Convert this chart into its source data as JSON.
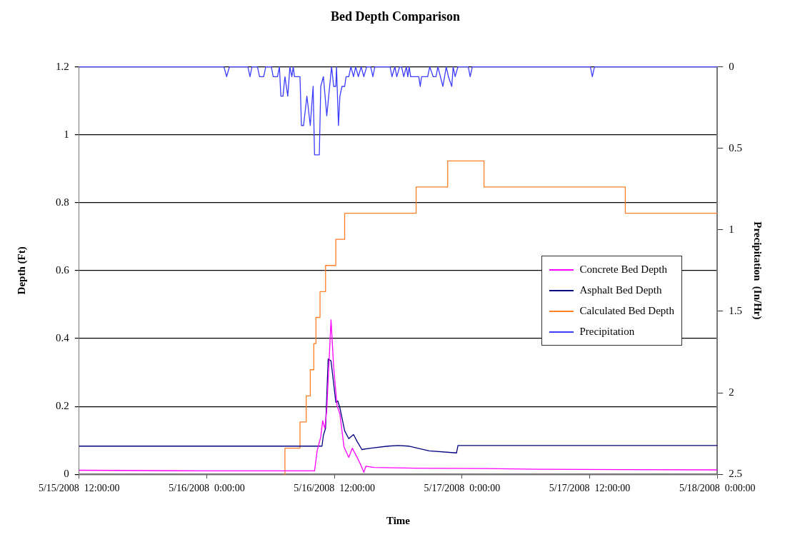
{
  "chart_data": {
    "type": "line",
    "title": "Bed Depth Comparison",
    "xlabel": "Time",
    "ylabel": "Depth (Ft)",
    "y2label": "Precipitation  (In/Hr)",
    "xlim": [
      "2008-05-15T12:00",
      "2008-05-18T00:00"
    ],
    "xticks": [
      {
        "value": "2008-05-15T12:00",
        "label": "5/15/2008  12:00:00"
      },
      {
        "value": "2008-05-16T00:00",
        "label": "5/16/2008  0:00:00"
      },
      {
        "value": "2008-05-16T12:00",
        "label": "5/16/2008  12:00:00"
      },
      {
        "value": "2008-05-17T00:00",
        "label": "5/17/2008  0:00:00"
      },
      {
        "value": "2008-05-17T12:00",
        "label": "5/17/2008  12:00:00"
      },
      {
        "value": "2008-05-18T00:00",
        "label": "5/18/2008  0:00:00"
      }
    ],
    "ylim": [
      0,
      1.2
    ],
    "yticks": [
      0,
      0.2,
      0.4,
      0.6,
      0.8,
      1,
      1.2
    ],
    "y2lim": [
      2.5,
      0
    ],
    "y2ticks": [
      0,
      0.5,
      1,
      1.5,
      2,
      2.5
    ],
    "grid": "y",
    "legend": "right",
    "marker": "none",
    "series": [
      {
        "name": "Concrete Bed Depth",
        "color": "#ff00ff",
        "x": [
          "2008-05-15T12:00",
          "2008-05-16T00:00",
          "2008-05-16T09:17",
          "2008-05-16T10:08",
          "2008-05-16T10:23",
          "2008-05-16T10:43",
          "2008-05-16T10:54",
          "2008-05-16T11:06",
          "2008-05-16T11:17",
          "2008-05-16T11:41",
          "2008-05-16T11:56",
          "2008-05-16T12:15",
          "2008-05-16T12:31",
          "2008-05-16T12:54",
          "2008-05-16T13:21",
          "2008-05-16T13:41",
          "2008-05-16T14:08",
          "2008-05-16T14:27",
          "2008-05-16T14:46",
          "2008-05-16T14:58",
          "2008-05-16T15:44",
          "2008-05-16T19:37",
          "2008-05-17T02:04",
          "2008-05-17T07:14",
          "2008-05-17T14:58",
          "2008-05-18T00:00"
        ],
        "values": [
          0.012,
          0.01,
          0.01,
          0.01,
          0.07,
          0.11,
          0.158,
          0.135,
          0.19,
          0.455,
          0.314,
          0.202,
          0.178,
          0.081,
          0.05,
          0.077,
          0.05,
          0.03,
          0.006,
          0.024,
          0.02,
          0.018,
          0.017,
          0.015,
          0.014,
          0.013
        ]
      },
      {
        "name": "Asphalt Bed Depth",
        "color": "#000080",
        "x": [
          "2008-05-15T12:00",
          "2008-05-16T10:50",
          "2008-05-16T10:58",
          "2008-05-16T11:10",
          "2008-05-16T11:25",
          "2008-05-16T11:41",
          "2008-05-16T12:08",
          "2008-05-16T12:19",
          "2008-05-16T12:31",
          "2008-05-16T12:58",
          "2008-05-16T13:21",
          "2008-05-16T13:48",
          "2008-05-16T14:08",
          "2008-05-16T14:35",
          "2008-05-16T15:25",
          "2008-05-16T17:02",
          "2008-05-16T18:00",
          "2008-05-16T18:58",
          "2008-05-16T20:54",
          "2008-05-16T23:29",
          "2008-05-16T23:37",
          "2008-05-18T00:00"
        ],
        "values": [
          0.083,
          0.083,
          0.115,
          0.135,
          0.34,
          0.334,
          0.212,
          0.216,
          0.196,
          0.128,
          0.105,
          0.117,
          0.097,
          0.073,
          0.077,
          0.083,
          0.085,
          0.083,
          0.069,
          0.063,
          0.085,
          0.085
        ]
      },
      {
        "name": "Calculated Bed Depth",
        "type": "step",
        "color": "#ff7f27",
        "x": [
          "2008-05-16T07:18",
          "2008-05-16T07:21",
          "2008-05-16T08:46",
          "2008-05-16T09:21",
          "2008-05-16T09:44",
          "2008-05-16T10:04",
          "2008-05-16T10:16",
          "2008-05-16T10:39",
          "2008-05-16T11:10",
          "2008-05-16T12:08",
          "2008-05-16T12:58",
          "2008-05-16T19:41",
          "2008-05-16T22:39",
          "2008-05-17T02:04",
          "2008-05-17T15:21",
          "2008-05-18T00:00"
        ],
        "values": [
          0,
          0.077,
          0.154,
          0.231,
          0.308,
          0.385,
          0.462,
          0.538,
          0.615,
          0.692,
          0.769,
          0.846,
          0.923,
          0.846,
          0.769,
          0.769
        ]
      },
      {
        "name": "Precipitation",
        "axis": "y2",
        "color": "#3c3cff",
        "x": [
          "2008-05-15T12:00",
          "2008-05-16T01:37",
          "2008-05-16T01:52",
          "2008-05-16T02:08",
          "2008-05-16T03:52",
          "2008-05-16T04:04",
          "2008-05-16T04:15",
          "2008-05-16T04:46",
          "2008-05-16T04:58",
          "2008-05-16T05:21",
          "2008-05-16T05:33",
          "2008-05-16T06:04",
          "2008-05-16T06:15",
          "2008-05-16T06:39",
          "2008-05-16T06:50",
          "2008-05-16T06:58",
          "2008-05-16T07:10",
          "2008-05-16T07:21",
          "2008-05-16T07:37",
          "2008-05-16T07:49",
          "2008-05-16T08:00",
          "2008-05-16T08:08",
          "2008-05-16T08:15",
          "2008-05-16T08:27",
          "2008-05-16T08:46",
          "2008-05-16T08:54",
          "2008-05-16T09:06",
          "2008-05-16T09:25",
          "2008-05-16T09:44",
          "2008-05-16T10:00",
          "2008-05-16T10:08",
          "2008-05-16T10:35",
          "2008-05-16T10:43",
          "2008-05-16T10:58",
          "2008-05-16T11:17",
          "2008-05-16T11:44",
          "2008-05-16T11:56",
          "2008-05-16T12:08",
          "2008-05-16T12:12",
          "2008-05-16T12:23",
          "2008-05-16T12:31",
          "2008-05-16T12:43",
          "2008-05-16T12:58",
          "2008-05-16T13:06",
          "2008-05-16T13:21",
          "2008-05-16T13:33",
          "2008-05-16T13:48",
          "2008-05-16T14:00",
          "2008-05-16T14:15",
          "2008-05-16T14:31",
          "2008-05-16T14:46",
          "2008-05-16T15:02",
          "2008-05-16T15:25",
          "2008-05-16T15:37",
          "2008-05-16T15:48",
          "2008-05-16T17:14",
          "2008-05-16T17:25",
          "2008-05-16T17:41",
          "2008-05-16T17:52",
          "2008-05-16T18:08",
          "2008-05-16T18:19",
          "2008-05-16T18:31",
          "2008-05-16T18:46",
          "2008-05-16T18:54",
          "2008-05-16T19:02",
          "2008-05-16T19:10",
          "2008-05-16T19:56",
          "2008-05-16T20:04",
          "2008-05-16T20:12",
          "2008-05-16T20:46",
          "2008-05-16T20:58",
          "2008-05-16T21:17",
          "2008-05-16T21:33",
          "2008-05-16T21:44",
          "2008-05-16T22:12",
          "2008-05-16T22:31",
          "2008-05-16T22:43",
          "2008-05-16T23:02",
          "2008-05-16T23:10",
          "2008-05-16T23:21",
          "2008-05-16T23:37",
          "2008-05-17T00:35",
          "2008-05-17T00:46",
          "2008-05-17T00:58",
          "2008-05-17T12:04",
          "2008-05-17T12:15",
          "2008-05-17T12:27",
          "2008-05-18T00:00"
        ],
        "values": [
          0,
          0,
          0.06,
          0,
          0,
          0.06,
          0,
          0,
          0.06,
          0.06,
          0,
          0,
          0.06,
          0.06,
          0,
          0.18,
          0.18,
          0.06,
          0.18,
          0,
          0.06,
          0,
          0.06,
          0.06,
          0.06,
          0.36,
          0.36,
          0.18,
          0.36,
          0.12,
          0.54,
          0.54,
          0.12,
          0.06,
          0.3,
          0,
          0.12,
          0.12,
          0,
          0.36,
          0.18,
          0.12,
          0.12,
          0.06,
          0.06,
          0,
          0.06,
          0,
          0.06,
          0,
          0.06,
          0,
          0,
          0.06,
          0,
          0,
          0.06,
          0,
          0.06,
          0,
          0,
          0.06,
          0,
          0.06,
          0,
          0.06,
          0.06,
          0.12,
          0.06,
          0.06,
          0,
          0.06,
          0.06,
          0,
          0.12,
          0,
          0.06,
          0.12,
          0,
          0.06,
          0,
          0,
          0.06,
          0,
          0,
          0.06,
          0,
          0
        ]
      }
    ]
  }
}
